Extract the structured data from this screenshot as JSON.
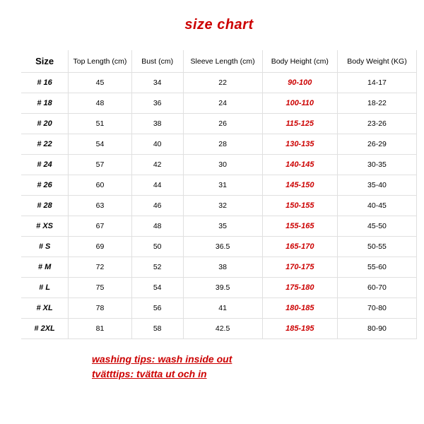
{
  "title": "size chart",
  "columns": [
    "Size",
    "Top Length (cm)",
    "Bust (cm)",
    "Sleeve Length (cm)",
    "Body Height (cm)",
    "Body Weight (KG)"
  ],
  "rows": [
    {
      "size": "# 16",
      "topLength": "45",
      "bust": "34",
      "sleeve": "22",
      "height": "90-100",
      "weight": "14-17"
    },
    {
      "size": "# 18",
      "topLength": "48",
      "bust": "36",
      "sleeve": "24",
      "height": "100-110",
      "weight": "18-22"
    },
    {
      "size": "# 20",
      "topLength": "51",
      "bust": "38",
      "sleeve": "26",
      "height": "115-125",
      "weight": "23-26"
    },
    {
      "size": "# 22",
      "topLength": "54",
      "bust": "40",
      "sleeve": "28",
      "height": "130-135",
      "weight": "26-29"
    },
    {
      "size": "# 24",
      "topLength": "57",
      "bust": "42",
      "sleeve": "30",
      "height": "140-145",
      "weight": "30-35"
    },
    {
      "size": "# 26",
      "topLength": "60",
      "bust": "44",
      "sleeve": "31",
      "height": "145-150",
      "weight": "35-40"
    },
    {
      "size": "# 28",
      "topLength": "63",
      "bust": "46",
      "sleeve": "32",
      "height": "150-155",
      "weight": "40-45"
    },
    {
      "size": "# XS",
      "topLength": "67",
      "bust": "48",
      "sleeve": "35",
      "height": "155-165",
      "weight": "45-50"
    },
    {
      "size": "# S",
      "topLength": "69",
      "bust": "50",
      "sleeve": "36.5",
      "height": "165-170",
      "weight": "50-55"
    },
    {
      "size": "# M",
      "topLength": "72",
      "bust": "52",
      "sleeve": "38",
      "height": "170-175",
      "weight": "55-60"
    },
    {
      "size": "# L",
      "topLength": "75",
      "bust": "54",
      "sleeve": "39.5",
      "height": "175-180",
      "weight": "60-70"
    },
    {
      "size": "# XL",
      "topLength": "78",
      "bust": "56",
      "sleeve": "41",
      "height": "180-185",
      "weight": "70-80"
    },
    {
      "size": "# 2XL",
      "topLength": "81",
      "bust": "58",
      "sleeve": "42.5",
      "height": "185-195",
      "weight": "80-90"
    }
  ],
  "tips": {
    "line1": "washing tips: wash inside out",
    "line2": "tvätttips: tvätta ut och in"
  },
  "style": {
    "title_color": "#cc0000",
    "title_fontsize": 20,
    "header_fontsize": 10.5,
    "cell_fontsize": 10.5,
    "size_head_fontsize": 13,
    "highlight_color": "#cc0000",
    "border_color": "#e0e0e0",
    "background": "#ffffff",
    "column_widths_pct": [
      12,
      16,
      13,
      20,
      19,
      20
    ]
  }
}
